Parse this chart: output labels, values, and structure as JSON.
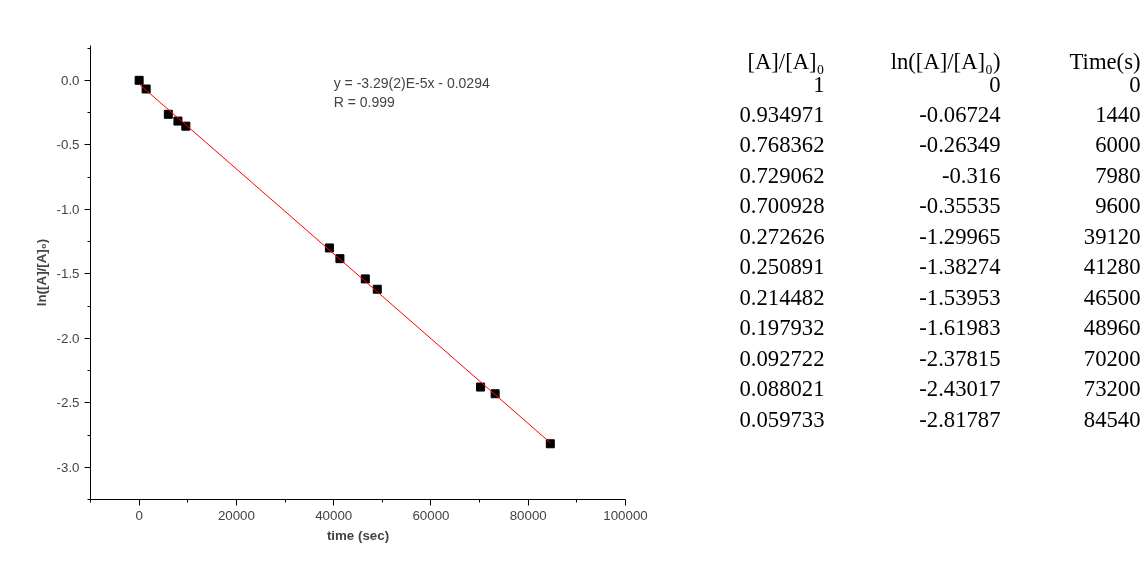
{
  "chart_data": [
    {
      "type": "scatter",
      "xlabel": "time (sec)",
      "ylabel": "ln([A]/[A]₀)",
      "annotations": [
        "y = -3.29(2)E-5x - 0.0294",
        "R = 0.999"
      ],
      "x": [
        0,
        1440,
        6000,
        7980,
        9600,
        39120,
        41280,
        46500,
        48960,
        70200,
        73200,
        84540
      ],
      "series": [
        {
          "type": "scatter",
          "color": "#000000",
          "marker": "square",
          "values": [
            0,
            -0.06724,
            -0.26349,
            -0.316,
            -0.35535,
            -1.29965,
            -1.38274,
            -1.53953,
            -1.61983,
            -2.37815,
            -2.43017,
            -2.81787
          ]
        },
        {
          "type": "line",
          "color": "#ff0000",
          "marker": "none",
          "x": [
            0,
            84540
          ],
          "values": [
            -0.0294,
            -2.81
          ]
        }
      ],
      "xlim": [
        -10000,
        100000
      ],
      "xticks": [
        0,
        20000,
        40000,
        60000,
        80000,
        100000
      ],
      "ylim": [
        -3.25,
        0.27
      ],
      "yticks": [
        {
          "value": 0,
          "label": "0.0"
        },
        {
          "value": -0.5,
          "label": "-0.5"
        },
        {
          "value": -1,
          "label": "-1.0"
        },
        {
          "value": -1.5,
          "label": "-1.5"
        },
        {
          "value": -2,
          "label": "-2.0"
        },
        {
          "value": -2.5,
          "label": "-2.5"
        },
        {
          "value": -3,
          "label": "-3.0"
        }
      ],
      "grid": false
    },
    {
      "type": "other",
      "annotations": [
        "[A]/[A]₀",
        "ln([A]/[A]₀)",
        "Time(s)",
        "1",
        "0",
        "0",
        "0.934971",
        "-0.06724",
        "1440",
        "0.768362",
        "-0.26349",
        "6000",
        "0.729062",
        "-0.316",
        "7980",
        "0.700928",
        "-0.35535",
        "9600",
        "0.272626",
        "-1.29965",
        "39120",
        "0.250891",
        "-1.38274",
        "41280",
        "0.214482",
        "-1.53953",
        "46500",
        "0.197932",
        "-1.61983",
        "48960",
        "0.092722",
        "-2.37815",
        "70200",
        "0.088021",
        "-2.43017",
        "73200",
        "0.059733",
        "-2.81787",
        "84540"
      ]
    }
  ]
}
